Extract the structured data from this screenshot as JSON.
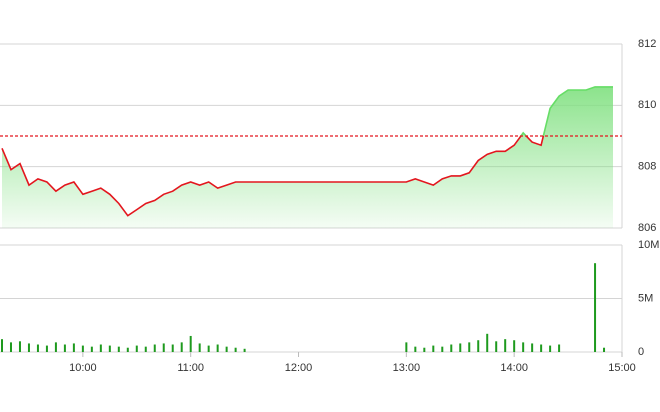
{
  "chart_data": [
    {
      "type": "line",
      "x": [
        "09:15",
        "09:20",
        "09:25",
        "09:30",
        "09:35",
        "09:40",
        "09:45",
        "09:50",
        "09:55",
        "10:00",
        "10:05",
        "10:10",
        "10:15",
        "10:20",
        "10:25",
        "10:30",
        "10:35",
        "10:40",
        "10:45",
        "10:50",
        "10:55",
        "11:00",
        "11:05",
        "11:10",
        "11:15",
        "11:20",
        "11:25",
        "11:30",
        "11:35",
        "11:40",
        "11:45",
        "11:50",
        "11:55",
        "12:00",
        "12:05",
        "12:10",
        "12:15",
        "12:20",
        "12:25",
        "12:30",
        "12:35",
        "12:40",
        "12:45",
        "12:50",
        "12:55",
        "13:00",
        "13:05",
        "13:10",
        "13:15",
        "13:20",
        "13:25",
        "13:30",
        "13:35",
        "13:40",
        "13:45",
        "13:50",
        "13:55",
        "14:00",
        "14:05",
        "14:10",
        "14:15",
        "14:20",
        "14:25",
        "14:30",
        "14:35",
        "14:40",
        "14:45",
        "14:50",
        "14:55"
      ],
      "values": [
        808.6,
        807.9,
        808.1,
        807.4,
        807.6,
        807.5,
        807.2,
        807.4,
        807.5,
        807.1,
        807.2,
        807.3,
        807.1,
        806.8,
        806.4,
        806.6,
        806.8,
        806.9,
        807.1,
        807.2,
        807.4,
        807.5,
        807.4,
        807.5,
        807.3,
        807.4,
        807.5,
        807.5,
        807.5,
        807.5,
        807.5,
        807.5,
        807.5,
        807.5,
        807.5,
        807.5,
        807.5,
        807.5,
        807.5,
        807.5,
        807.5,
        807.5,
        807.5,
        807.5,
        807.5,
        807.5,
        807.6,
        807.5,
        807.4,
        807.6,
        807.7,
        807.7,
        807.8,
        808.2,
        808.4,
        808.5,
        808.5,
        808.7,
        809.1,
        808.8,
        808.7,
        809.9,
        810.3,
        810.5,
        810.5,
        810.5,
        810.6,
        810.6,
        810.6
      ],
      "color": "#e3161e",
      "color_above": "#66dd66",
      "reference": 809,
      "xlim": [
        "09:15",
        "15:00"
      ],
      "ylim": [
        806,
        812
      ],
      "yticks": [
        806,
        808,
        810,
        812
      ],
      "grid": true
    },
    {
      "type": "bar",
      "x": [
        "09:15",
        "09:20",
        "09:25",
        "09:30",
        "09:35",
        "09:40",
        "09:45",
        "09:50",
        "09:55",
        "10:00",
        "10:05",
        "10:10",
        "10:15",
        "10:20",
        "10:25",
        "10:30",
        "10:35",
        "10:40",
        "10:45",
        "10:50",
        "10:55",
        "11:00",
        "11:05",
        "11:10",
        "11:15",
        "11:20",
        "11:25",
        "11:30",
        "11:35",
        "11:40",
        "11:45",
        "11:50",
        "11:55",
        "12:00",
        "12:05",
        "12:10",
        "12:15",
        "12:20",
        "12:25",
        "12:30",
        "12:35",
        "12:40",
        "12:45",
        "12:50",
        "12:55",
        "13:00",
        "13:05",
        "13:10",
        "13:15",
        "13:20",
        "13:25",
        "13:30",
        "13:35",
        "13:40",
        "13:45",
        "13:50",
        "13:55",
        "14:00",
        "14:05",
        "14:10",
        "14:15",
        "14:20",
        "14:25",
        "14:30",
        "14:35",
        "14:40",
        "14:45",
        "14:50",
        "14:55"
      ],
      "values": [
        1200000,
        900000,
        1000000,
        800000,
        700000,
        600000,
        900000,
        700000,
        800000,
        600000,
        500000,
        700000,
        600000,
        500000,
        400000,
        600000,
        500000,
        700000,
        800000,
        700000,
        900000,
        1500000,
        800000,
        600000,
        700000,
        500000,
        400000,
        300000,
        0,
        0,
        0,
        0,
        0,
        0,
        0,
        0,
        0,
        0,
        0,
        0,
        0,
        0,
        0,
        0,
        0,
        900000,
        500000,
        400000,
        600000,
        500000,
        700000,
        800000,
        900000,
        1100000,
        1700000,
        1000000,
        1200000,
        1100000,
        900000,
        800000,
        700000,
        600000,
        700000,
        0,
        0,
        0,
        8300000,
        400000,
        0
      ],
      "color": "#1e9a1e",
      "xlim": [
        "09:15",
        "15:00"
      ],
      "xticks": [
        "10:00",
        "11:00",
        "12:00",
        "13:00",
        "14:00",
        "15:00"
      ],
      "ylim": [
        0,
        10000000
      ],
      "yticks": [
        0,
        {
          "value": 5000000,
          "label": "5M"
        },
        {
          "value": 10000000,
          "label": "10M"
        }
      ],
      "grid": true
    }
  ]
}
